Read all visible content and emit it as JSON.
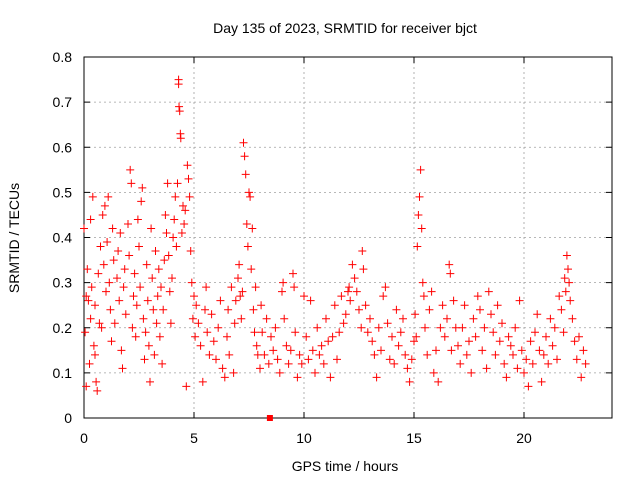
{
  "chart_data": {
    "type": "scatter",
    "title": "Day 135 of 2023, SRMTID for receiver bjct",
    "xlabel": "GPS time / hours",
    "ylabel": "SRMTID / TECUs",
    "xlim": [
      0,
      24
    ],
    "ylim": [
      0,
      0.8
    ],
    "xticks": [
      0,
      5,
      10,
      15,
      20
    ],
    "yticks": [
      0,
      0.1,
      0.2,
      0.3,
      0.4,
      0.5,
      0.6,
      0.7,
      0.8
    ],
    "x_tick_labels": [
      "0",
      "5",
      "10",
      "15",
      "20"
    ],
    "y_tick_labels": [
      "0",
      "0.1",
      "0.2",
      "0.3",
      "0.4",
      "0.5",
      "0.6",
      "0.7",
      "0.8"
    ],
    "grid": true,
    "marker": "plus",
    "color": "#ff0000",
    "gap_marker": {
      "x": 8.45,
      "y": 0.0
    },
    "series": [
      {
        "name": "SRMTID",
        "points": [
          [
            0.0,
            0.42
          ],
          [
            0.05,
            0.19
          ],
          [
            0.1,
            0.07
          ],
          [
            0.1,
            0.27
          ],
          [
            0.15,
            0.33
          ],
          [
            0.2,
            0.26
          ],
          [
            0.25,
            0.12
          ],
          [
            0.3,
            0.44
          ],
          [
            0.3,
            0.22
          ],
          [
            0.35,
            0.29
          ],
          [
            0.4,
            0.49
          ],
          [
            0.45,
            0.16
          ],
          [
            0.5,
            0.14
          ],
          [
            0.5,
            0.25
          ],
          [
            0.55,
            0.08
          ],
          [
            0.6,
            0.06
          ],
          [
            0.65,
            0.32
          ],
          [
            0.7,
            0.21
          ],
          [
            0.75,
            0.38
          ],
          [
            0.8,
            0.2
          ],
          [
            0.85,
            0.45
          ],
          [
            0.9,
            0.34
          ],
          [
            0.95,
            0.47
          ],
          [
            1.0,
            0.28
          ],
          [
            1.05,
            0.39
          ],
          [
            1.1,
            0.49
          ],
          [
            1.15,
            0.3
          ],
          [
            1.2,
            0.24
          ],
          [
            1.25,
            0.17
          ],
          [
            1.3,
            0.42
          ],
          [
            1.35,
            0.35
          ],
          [
            1.4,
            0.21
          ],
          [
            1.5,
            0.31
          ],
          [
            1.55,
            0.37
          ],
          [
            1.6,
            0.26
          ],
          [
            1.65,
            0.41
          ],
          [
            1.7,
            0.15
          ],
          [
            1.75,
            0.11
          ],
          [
            1.8,
            0.29
          ],
          [
            1.85,
            0.33
          ],
          [
            1.9,
            0.23
          ],
          [
            2.0,
            0.43
          ],
          [
            2.05,
            0.36
          ],
          [
            2.1,
            0.55
          ],
          [
            2.15,
            0.52
          ],
          [
            2.2,
            0.2
          ],
          [
            2.25,
            0.27
          ],
          [
            2.3,
            0.32
          ],
          [
            2.35,
            0.18
          ],
          [
            2.4,
            0.25
          ],
          [
            2.45,
            0.44
          ],
          [
            2.5,
            0.38
          ],
          [
            2.55,
            0.29
          ],
          [
            2.6,
            0.48
          ],
          [
            2.65,
            0.51
          ],
          [
            2.7,
            0.22
          ],
          [
            2.75,
            0.13
          ],
          [
            2.8,
            0.19
          ],
          [
            2.85,
            0.34
          ],
          [
            2.9,
            0.26
          ],
          [
            2.95,
            0.16
          ],
          [
            3.0,
            0.08
          ],
          [
            3.05,
            0.42
          ],
          [
            3.1,
            0.31
          ],
          [
            3.15,
            0.24
          ],
          [
            3.2,
            0.14
          ],
          [
            3.25,
            0.37
          ],
          [
            3.3,
            0.21
          ],
          [
            3.35,
            0.27
          ],
          [
            3.4,
            0.33
          ],
          [
            3.45,
            0.18
          ],
          [
            3.5,
            0.29
          ],
          [
            3.55,
            0.12
          ],
          [
            3.6,
            0.24
          ],
          [
            3.65,
            0.35
          ],
          [
            3.7,
            0.45
          ],
          [
            3.75,
            0.41
          ],
          [
            3.8,
            0.52
          ],
          [
            3.85,
            0.36
          ],
          [
            3.9,
            0.28
          ],
          [
            3.95,
            0.21
          ],
          [
            4.0,
            0.31
          ],
          [
            4.05,
            0.4
          ],
          [
            4.1,
            0.44
          ],
          [
            4.15,
            0.49
          ],
          [
            4.2,
            0.38
          ],
          [
            4.25,
            0.52
          ],
          [
            4.3,
            0.75
          ],
          [
            4.3,
            0.74
          ],
          [
            4.32,
            0.69
          ],
          [
            4.35,
            0.68
          ],
          [
            4.38,
            0.63
          ],
          [
            4.4,
            0.62
          ],
          [
            4.45,
            0.41
          ],
          [
            4.5,
            0.47
          ],
          [
            4.55,
            0.43
          ],
          [
            4.6,
            0.46
          ],
          [
            4.65,
            0.07
          ],
          [
            4.7,
            0.56
          ],
          [
            4.75,
            0.53
          ],
          [
            4.8,
            0.49
          ],
          [
            4.85,
            0.37
          ],
          [
            4.9,
            0.3
          ],
          [
            4.95,
            0.22
          ],
          [
            5.0,
            0.27
          ],
          [
            5.05,
            0.18
          ],
          [
            5.1,
            0.25
          ],
          [
            5.2,
            0.21
          ],
          [
            5.3,
            0.16
          ],
          [
            5.4,
            0.08
          ],
          [
            5.5,
            0.24
          ],
          [
            5.55,
            0.29
          ],
          [
            5.6,
            0.19
          ],
          [
            5.7,
            0.14
          ],
          [
            5.8,
            0.23
          ],
          [
            5.9,
            0.17
          ],
          [
            6.0,
            0.13
          ],
          [
            6.1,
            0.2
          ],
          [
            6.2,
            0.26
          ],
          [
            6.3,
            0.11
          ],
          [
            6.4,
            0.09
          ],
          [
            6.5,
            0.18
          ],
          [
            6.55,
            0.24
          ],
          [
            6.6,
            0.14
          ],
          [
            6.7,
            0.29
          ],
          [
            6.8,
            0.1
          ],
          [
            6.85,
            0.21
          ],
          [
            6.9,
            0.26
          ],
          [
            7.0,
            0.31
          ],
          [
            7.05,
            0.34
          ],
          [
            7.1,
            0.27
          ],
          [
            7.15,
            0.22
          ],
          [
            7.2,
            0.28
          ],
          [
            7.25,
            0.61
          ],
          [
            7.3,
            0.58
          ],
          [
            7.35,
            0.54
          ],
          [
            7.4,
            0.43
          ],
          [
            7.45,
            0.38
          ],
          [
            7.5,
            0.5
          ],
          [
            7.55,
            0.49
          ],
          [
            7.6,
            0.33
          ],
          [
            7.65,
            0.42
          ],
          [
            7.7,
            0.24
          ],
          [
            7.75,
            0.19
          ],
          [
            7.8,
            0.29
          ],
          [
            7.85,
            0.16
          ],
          [
            7.9,
            0.14
          ],
          [
            8.0,
            0.11
          ],
          [
            8.05,
            0.25
          ],
          [
            8.1,
            0.19
          ],
          [
            8.2,
            0.14
          ],
          [
            8.3,
            0.22
          ],
          [
            8.4,
            0.12
          ],
          [
            8.5,
            0.18
          ],
          [
            8.6,
            0.15
          ],
          [
            8.7,
            0.2
          ],
          [
            8.8,
            0.13
          ],
          [
            8.9,
            0.1
          ],
          [
            9.0,
            0.28
          ],
          [
            9.05,
            0.3
          ],
          [
            9.1,
            0.22
          ],
          [
            9.2,
            0.16
          ],
          [
            9.3,
            0.12
          ],
          [
            9.4,
            0.15
          ],
          [
            9.5,
            0.32
          ],
          [
            9.55,
            0.29
          ],
          [
            9.6,
            0.19
          ],
          [
            9.7,
            0.09
          ],
          [
            9.8,
            0.14
          ],
          [
            9.9,
            0.12
          ],
          [
            10.0,
            0.27
          ],
          [
            10.1,
            0.18
          ],
          [
            10.2,
            0.13
          ],
          [
            10.3,
            0.26
          ],
          [
            10.4,
            0.15
          ],
          [
            10.5,
            0.1
          ],
          [
            10.6,
            0.2
          ],
          [
            10.7,
            0.14
          ],
          [
            10.8,
            0.16
          ],
          [
            10.9,
            0.12
          ],
          [
            11.0,
            0.22
          ],
          [
            11.1,
            0.17
          ],
          [
            11.2,
            0.09
          ],
          [
            11.3,
            0.18
          ],
          [
            11.4,
            0.25
          ],
          [
            11.5,
            0.13
          ],
          [
            11.6,
            0.19
          ],
          [
            11.7,
            0.27
          ],
          [
            11.8,
            0.21
          ],
          [
            11.9,
            0.23
          ],
          [
            12.0,
            0.28
          ],
          [
            12.05,
            0.29
          ],
          [
            12.1,
            0.26
          ],
          [
            12.2,
            0.34
          ],
          [
            12.3,
            0.31
          ],
          [
            12.4,
            0.28
          ],
          [
            12.5,
            0.24
          ],
          [
            12.6,
            0.2
          ],
          [
            12.65,
            0.37
          ],
          [
            12.7,
            0.33
          ],
          [
            12.8,
            0.25
          ],
          [
            12.9,
            0.19
          ],
          [
            13.0,
            0.22
          ],
          [
            13.1,
            0.17
          ],
          [
            13.2,
            0.14
          ],
          [
            13.3,
            0.09
          ],
          [
            13.4,
            0.2
          ],
          [
            13.5,
            0.15
          ],
          [
            13.6,
            0.27
          ],
          [
            13.7,
            0.29
          ],
          [
            13.8,
            0.21
          ],
          [
            13.9,
            0.13
          ],
          [
            14.0,
            0.18
          ],
          [
            14.1,
            0.12
          ],
          [
            14.2,
            0.24
          ],
          [
            14.3,
            0.16
          ],
          [
            14.4,
            0.19
          ],
          [
            14.5,
            0.22
          ],
          [
            14.6,
            0.14
          ],
          [
            14.7,
            0.11
          ],
          [
            14.8,
            0.08
          ],
          [
            14.9,
            0.13
          ],
          [
            15.0,
            0.17
          ],
          [
            15.05,
            0.23
          ],
          [
            15.1,
            0.18
          ],
          [
            15.15,
            0.38
          ],
          [
            15.2,
            0.45
          ],
          [
            15.25,
            0.49
          ],
          [
            15.3,
            0.55
          ],
          [
            15.35,
            0.42
          ],
          [
            15.4,
            0.3
          ],
          [
            15.45,
            0.27
          ],
          [
            15.5,
            0.2
          ],
          [
            15.6,
            0.14
          ],
          [
            15.7,
            0.24
          ],
          [
            15.8,
            0.28
          ],
          [
            15.9,
            0.1
          ],
          [
            16.0,
            0.15
          ],
          [
            16.1,
            0.08
          ],
          [
            16.2,
            0.2
          ],
          [
            16.3,
            0.25
          ],
          [
            16.4,
            0.18
          ],
          [
            16.5,
            0.22
          ],
          [
            16.6,
            0.34
          ],
          [
            16.65,
            0.32
          ],
          [
            16.7,
            0.15
          ],
          [
            16.8,
            0.26
          ],
          [
            16.9,
            0.2
          ],
          [
            17.0,
            0.16
          ],
          [
            17.1,
            0.12
          ],
          [
            17.2,
            0.2
          ],
          [
            17.3,
            0.25
          ],
          [
            17.4,
            0.14
          ],
          [
            17.5,
            0.17
          ],
          [
            17.6,
            0.1
          ],
          [
            17.7,
            0.22
          ],
          [
            17.8,
            0.18
          ],
          [
            17.9,
            0.27
          ],
          [
            18.0,
            0.24
          ],
          [
            18.1,
            0.15
          ],
          [
            18.2,
            0.2
          ],
          [
            18.3,
            0.11
          ],
          [
            18.4,
            0.28
          ],
          [
            18.5,
            0.23
          ],
          [
            18.6,
            0.19
          ],
          [
            18.7,
            0.14
          ],
          [
            18.8,
            0.25
          ],
          [
            18.9,
            0.17
          ],
          [
            19.0,
            0.21
          ],
          [
            19.1,
            0.12
          ],
          [
            19.2,
            0.09
          ],
          [
            19.3,
            0.18
          ],
          [
            19.4,
            0.16
          ],
          [
            19.5,
            0.14
          ],
          [
            19.6,
            0.2
          ],
          [
            19.7,
            0.11
          ],
          [
            19.8,
            0.26
          ],
          [
            19.9,
            0.15
          ],
          [
            20.0,
            0.1
          ],
          [
            20.1,
            0.13
          ],
          [
            20.2,
            0.07
          ],
          [
            20.3,
            0.17
          ],
          [
            20.4,
            0.12
          ],
          [
            20.5,
            0.19
          ],
          [
            20.6,
            0.23
          ],
          [
            20.7,
            0.15
          ],
          [
            20.8,
            0.08
          ],
          [
            20.9,
            0.14
          ],
          [
            21.0,
            0.18
          ],
          [
            21.1,
            0.12
          ],
          [
            21.2,
            0.22
          ],
          [
            21.3,
            0.16
          ],
          [
            21.4,
            0.2
          ],
          [
            21.5,
            0.13
          ],
          [
            21.6,
            0.27
          ],
          [
            21.7,
            0.24
          ],
          [
            21.8,
            0.19
          ],
          [
            21.85,
            0.31
          ],
          [
            21.9,
            0.28
          ],
          [
            21.95,
            0.36
          ],
          [
            22.0,
            0.33
          ],
          [
            22.05,
            0.3
          ],
          [
            22.1,
            0.26
          ],
          [
            22.2,
            0.22
          ],
          [
            22.3,
            0.17
          ],
          [
            22.4,
            0.13
          ],
          [
            22.5,
            0.18
          ],
          [
            22.6,
            0.09
          ],
          [
            22.7,
            0.15
          ],
          [
            22.8,
            0.12
          ]
        ]
      }
    ]
  }
}
